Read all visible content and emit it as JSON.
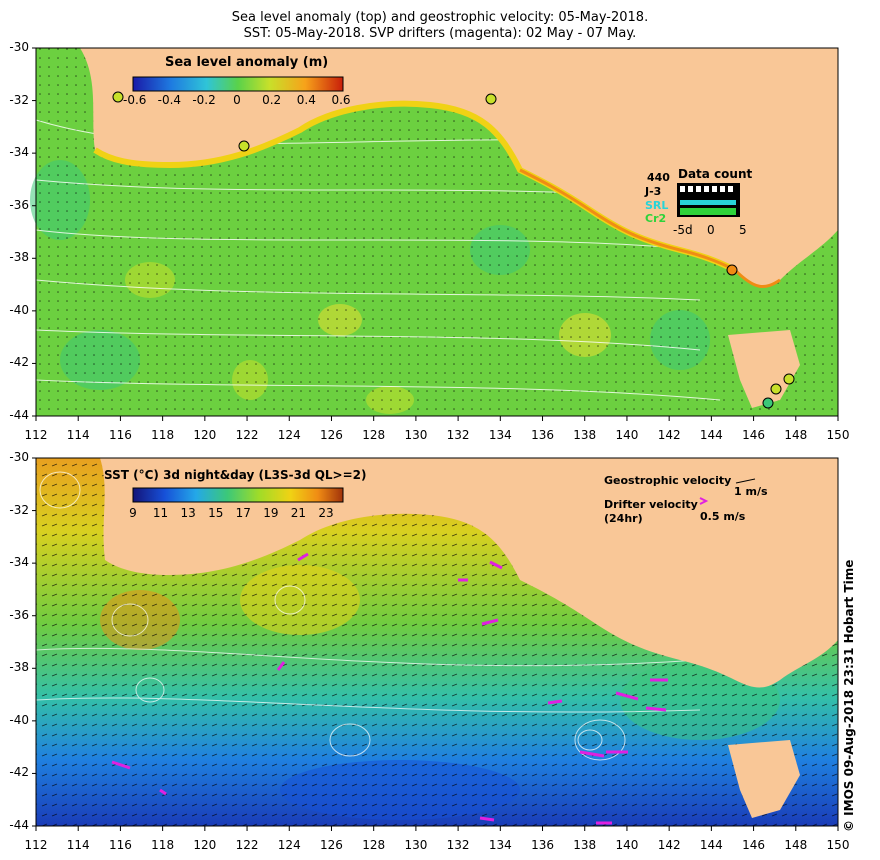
{
  "title": {
    "line1": "Sea level anomaly (top) and geostrophic velocity: 05-May-2018.",
    "line2": "SST: 05-May-2018. SVP drifters (magenta): 02 May - 07 May."
  },
  "top_panel": {
    "colorbar_title": "Sea level anomaly (m)",
    "colorbar_ticks": [
      "-0.6",
      "-0.4",
      "-0.2",
      "0",
      "0.2",
      "0.4",
      "0.6"
    ],
    "colorbar_colors": [
      "#1a1aa8",
      "#1e7ae0",
      "#2fc4d8",
      "#5ad24a",
      "#c8e02a",
      "#f7a21a",
      "#c81e0a"
    ],
    "data_count": {
      "title": "Data count",
      "count": "440",
      "satellites": [
        {
          "label": "J-3",
          "color": "#000000"
        },
        {
          "label": "SRL",
          "color": "#28d4d8"
        },
        {
          "label": "Cr2",
          "color": "#2ed23a"
        }
      ],
      "axis_ticks": [
        "-5d",
        "0",
        "5"
      ]
    }
  },
  "bottom_panel": {
    "colorbar_title": "SST (°C) 3d night&day (L3S-3d QL>=2)",
    "colorbar_ticks": [
      "9",
      "11",
      "13",
      "15",
      "17",
      "19",
      "21",
      "23"
    ],
    "colorbar_colors": [
      "#141478",
      "#1650d8",
      "#24a8e8",
      "#3cc878",
      "#a0dc28",
      "#f0d214",
      "#f08c14",
      "#a0320a"
    ],
    "geostrophic_label": "Geostrophic velocity",
    "geostrophic_scale": "1 m/s",
    "drifter_label": "Drifter velocity",
    "drifter_sub": "(24hr)",
    "drifter_scale": "0.5 m/s"
  },
  "axes": {
    "lon_ticks": [
      "112",
      "114",
      "116",
      "118",
      "120",
      "122",
      "124",
      "126",
      "128",
      "130",
      "132",
      "134",
      "136",
      "138",
      "140",
      "142",
      "144",
      "146",
      "148",
      "150"
    ],
    "lat_ticks": [
      "-30",
      "-32",
      "-34",
      "-36",
      "-38",
      "-40",
      "-42",
      "-44"
    ]
  },
  "credit": "© IMOS 09-Aug-2018 23:31 Hobart Time",
  "colors": {
    "land": "#f9c797",
    "ocean_mid": "#6cd040",
    "drifter": "#e020e0"
  }
}
